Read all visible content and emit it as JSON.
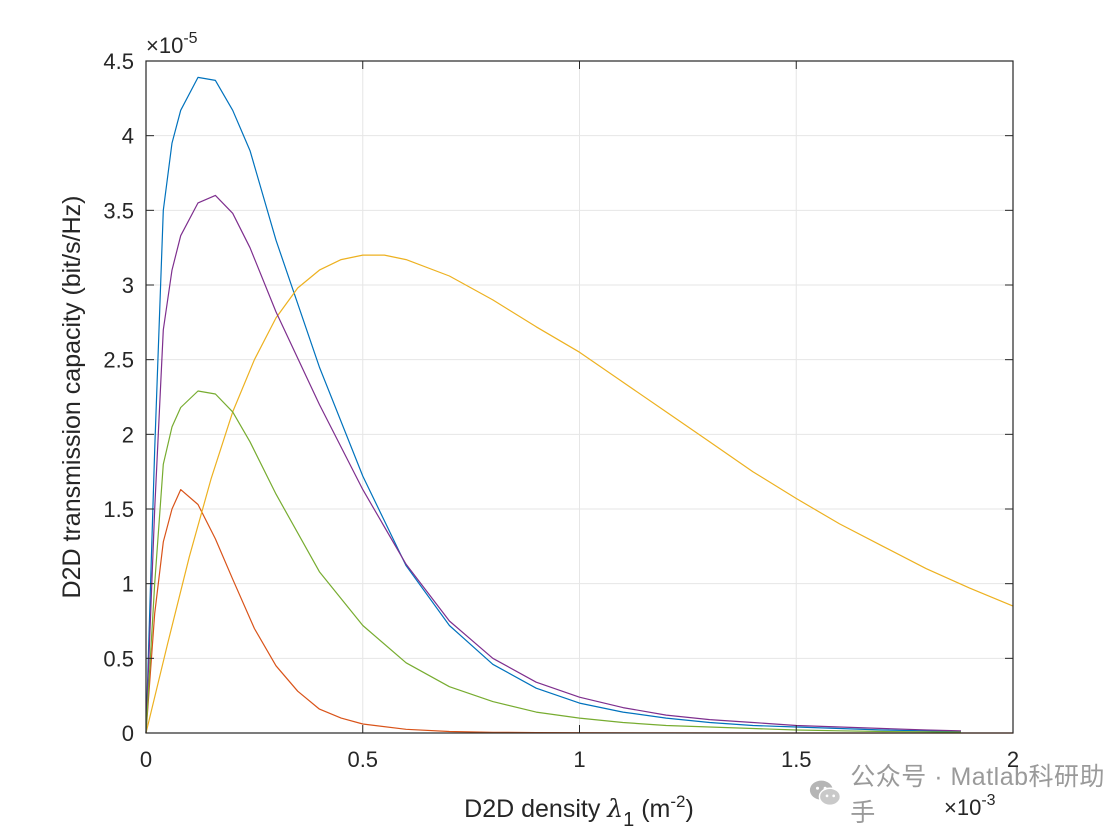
{
  "chart_data": {
    "type": "line",
    "title": "",
    "xlabel": {
      "prefix": "D2D density ",
      "symbol": "λ",
      "subscript": "1",
      "unit_open": " (m",
      "unit_exp": "-2",
      "unit_close": ")"
    },
    "ylabel": "D2D transmission capacity (bit/s/Hz)",
    "xlim": [
      0,
      2
    ],
    "ylim": [
      0,
      4.5
    ],
    "x_scale_base": "×10",
    "x_scale_exp": "-3",
    "y_scale_base": "×10",
    "y_scale_exp": "-5",
    "grid": true,
    "xticks": [
      0,
      0.5,
      1,
      1.5,
      2
    ],
    "xtick_labels": [
      "0",
      "0.5",
      "1",
      "1.5",
      "2"
    ],
    "yticks": [
      0,
      0.5,
      1,
      1.5,
      2,
      2.5,
      3,
      3.5,
      4,
      4.5
    ],
    "ytick_labels": [
      "0",
      "0.5",
      "1",
      "1.5",
      "2",
      "2.5",
      "3",
      "3.5",
      "4",
      "4.5"
    ],
    "series": [
      {
        "name": "blue",
        "color": "#0072BD",
        "x": [
          0,
          0.02,
          0.04,
          0.06,
          0.08,
          0.12,
          0.16,
          0.2,
          0.24,
          0.3,
          0.4,
          0.5,
          0.6,
          0.7,
          0.8,
          0.9,
          1.0,
          1.1,
          1.2,
          1.3,
          1.4,
          1.5,
          1.6,
          1.7,
          1.8,
          1.88
        ],
        "y": [
          0,
          1.9,
          3.5,
          3.95,
          4.17,
          4.39,
          4.37,
          4.17,
          3.9,
          3.3,
          2.45,
          1.72,
          1.12,
          0.72,
          0.46,
          0.3,
          0.2,
          0.14,
          0.1,
          0.07,
          0.05,
          0.04,
          0.03,
          0.02,
          0.015,
          0.01
        ]
      },
      {
        "name": "red",
        "color": "#D95319",
        "x": [
          0,
          0.02,
          0.04,
          0.06,
          0.08,
          0.12,
          0.16,
          0.2,
          0.25,
          0.3,
          0.35,
          0.4,
          0.45,
          0.5,
          0.6,
          0.7,
          0.8,
          0.9,
          1.0,
          1.2,
          1.5,
          2.0
        ],
        "y": [
          0,
          0.8,
          1.28,
          1.5,
          1.63,
          1.53,
          1.3,
          1.03,
          0.7,
          0.45,
          0.28,
          0.16,
          0.1,
          0.06,
          0.025,
          0.01,
          0.005,
          0.003,
          0.002,
          0.001,
          0.0,
          0.0
        ]
      },
      {
        "name": "yellow",
        "color": "#EDB120",
        "x": [
          0,
          0.05,
          0.1,
          0.15,
          0.2,
          0.25,
          0.3,
          0.35,
          0.4,
          0.45,
          0.5,
          0.55,
          0.6,
          0.7,
          0.8,
          0.9,
          1.0,
          1.1,
          1.2,
          1.3,
          1.4,
          1.5,
          1.6,
          1.7,
          1.8,
          1.9,
          2.0
        ],
        "y": [
          0,
          0.6,
          1.18,
          1.7,
          2.15,
          2.5,
          2.78,
          2.98,
          3.1,
          3.17,
          3.2,
          3.2,
          3.17,
          3.06,
          2.9,
          2.72,
          2.55,
          2.35,
          2.15,
          1.95,
          1.75,
          1.57,
          1.4,
          1.25,
          1.1,
          0.97,
          0.85
        ]
      },
      {
        "name": "purple",
        "color": "#7E2F8E",
        "x": [
          0,
          0.02,
          0.04,
          0.06,
          0.08,
          0.12,
          0.16,
          0.2,
          0.24,
          0.3,
          0.4,
          0.5,
          0.6,
          0.7,
          0.8,
          0.9,
          1.0,
          1.1,
          1.2,
          1.3,
          1.4,
          1.5,
          1.6,
          1.7,
          1.8,
          1.88
        ],
        "y": [
          0,
          1.5,
          2.7,
          3.1,
          3.33,
          3.55,
          3.6,
          3.48,
          3.25,
          2.82,
          2.2,
          1.63,
          1.13,
          0.75,
          0.5,
          0.34,
          0.24,
          0.17,
          0.12,
          0.09,
          0.07,
          0.05,
          0.04,
          0.03,
          0.02,
          0.015
        ]
      },
      {
        "name": "green",
        "color": "#77AC30",
        "x": [
          0,
          0.02,
          0.04,
          0.06,
          0.08,
          0.12,
          0.16,
          0.2,
          0.24,
          0.3,
          0.4,
          0.5,
          0.6,
          0.7,
          0.8,
          0.9,
          1.0,
          1.1,
          1.2,
          1.3,
          1.4,
          1.5,
          1.6,
          1.7,
          1.8,
          1.88
        ],
        "y": [
          0,
          1.0,
          1.8,
          2.05,
          2.18,
          2.29,
          2.27,
          2.15,
          1.95,
          1.6,
          1.08,
          0.72,
          0.47,
          0.31,
          0.21,
          0.14,
          0.1,
          0.07,
          0.05,
          0.04,
          0.03,
          0.02,
          0.015,
          0.01,
          0.008,
          0.006
        ]
      }
    ]
  },
  "watermark": {
    "text": "公众号 · Matlab科研助手",
    "icon": "wechat-logo-icon"
  }
}
